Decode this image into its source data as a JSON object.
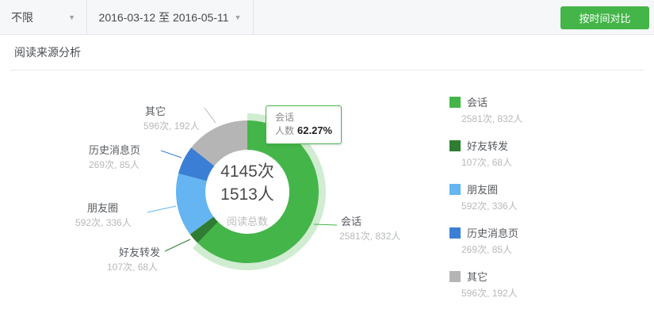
{
  "topbar": {
    "filter": {
      "value": "不限"
    },
    "date_range": {
      "value": "2016-03-12 至 2016-05-11"
    },
    "compare_button_label": "按时间对比"
  },
  "section_title": "阅读来源分析",
  "chart_data": {
    "type": "pie",
    "subtype": "donut",
    "title": "阅读来源分析",
    "total_reads": 4145,
    "total_readers": 1513,
    "units": {
      "reads": "次",
      "readers": "人"
    },
    "center": {
      "line1": "4145次",
      "line2": "1513人",
      "caption": "阅读总数"
    },
    "categories": [
      "会话",
      "好友转发",
      "朋友圈",
      "历史消息页",
      "其它"
    ],
    "series": [
      {
        "name": "会话",
        "reads": 2581,
        "readers": 832,
        "pct_of_reads": 62.27,
        "color": "#44b549"
      },
      {
        "name": "好友转发",
        "reads": 107,
        "readers": 68,
        "pct_of_reads": 2.58,
        "color": "#2e7d32"
      },
      {
        "name": "朋友圈",
        "reads": 592,
        "readers": 336,
        "pct_of_reads": 14.28,
        "color": "#64b5f1"
      },
      {
        "name": "历史消息页",
        "reads": 269,
        "readers": 85,
        "pct_of_reads": 6.49,
        "color": "#3a7fd5"
      },
      {
        "name": "其它",
        "reads": 596,
        "readers": 192,
        "pct_of_reads": 14.38,
        "color": "#b5b5b5"
      }
    ],
    "selected_slice": "会话",
    "highlight_color": "rgba(68,181,73,0.25)",
    "legend_position": "right",
    "start_angle": "top",
    "direction": "clockwise"
  },
  "tooltip": {
    "title": "会话",
    "label": "人数",
    "value": "62.27%"
  },
  "colors": {
    "accent_green": "#44b549",
    "topbar_bg": "#f6f7f9"
  }
}
